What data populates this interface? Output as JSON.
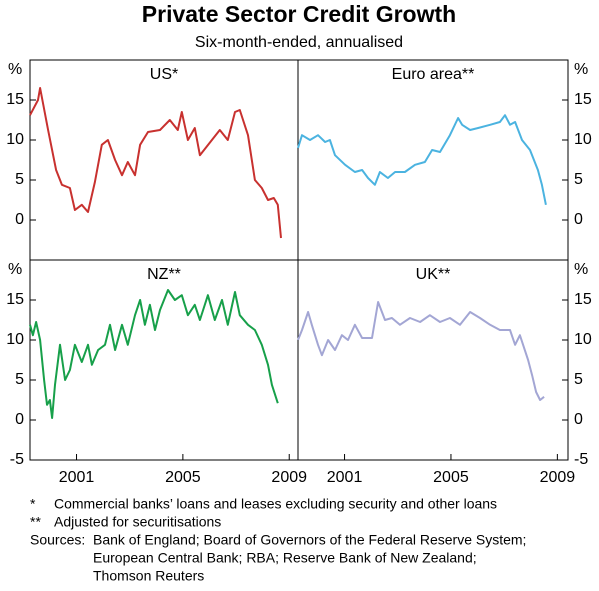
{
  "title": "Private Sector Credit Growth",
  "subtitle": "Six-month-ended, annualised",
  "chart_data": [
    {
      "type": "line",
      "title": "US*",
      "axis_side": "left",
      "y_unit": "%",
      "xlim": [
        1999.25,
        2009.33
      ],
      "ylim": [
        -5,
        20
      ],
      "yticks": [
        0,
        5,
        10,
        15
      ],
      "xticks": [],
      "x": [
        1999.25,
        1999.55,
        1999.63,
        1999.93,
        2000.23,
        2000.45,
        2000.75,
        2000.94,
        2001.2,
        2001.43,
        2001.69,
        2001.95,
        2002.18,
        2002.45,
        2002.71,
        2002.93,
        2003.2,
        2003.39,
        2003.69,
        2004.14,
        2004.51,
        2004.81,
        2004.96,
        2005.19,
        2005.45,
        2005.64,
        2006.09,
        2006.39,
        2006.69,
        2006.96,
        2007.14,
        2007.45,
        2007.71,
        2007.97,
        2008.2,
        2008.42,
        2008.57,
        2008.69
      ],
      "series": [
        {
          "color": "#c8312f",
          "values": [
            13.1,
            15,
            16.5,
            11.25,
            6.25,
            4.4,
            4,
            1.25,
            1.9,
            1,
            4.75,
            9.4,
            10,
            7.5,
            5.6,
            7.25,
            5.6,
            9.4,
            11,
            11.25,
            12.5,
            11.25,
            13.5,
            10,
            11.5,
            8.1,
            10,
            11.25,
            10,
            13.5,
            13.75,
            10.6,
            5,
            4,
            2.5,
            2.75,
            1.9,
            -2.25
          ]
        }
      ]
    },
    {
      "type": "line",
      "title": "Euro area**",
      "axis_side": "right",
      "y_unit": "%",
      "xlim": [
        1999.25,
        2009.4
      ],
      "ylim": [
        -5,
        20
      ],
      "yticks": [
        0,
        5,
        10,
        15
      ],
      "xticks": [],
      "x": [
        1999.25,
        1999.4,
        1999.7,
        2000.0,
        2000.27,
        2000.45,
        2000.64,
        2001.02,
        2001.39,
        2001.66,
        2001.88,
        2002.14,
        2002.33,
        2002.63,
        2002.9,
        2003.27,
        2003.65,
        2004.02,
        2004.29,
        2004.59,
        2004.96,
        2005.27,
        2005.42,
        2005.72,
        2006.02,
        2006.47,
        2006.84,
        2007.03,
        2007.22,
        2007.41,
        2007.67,
        2007.97,
        2008.27,
        2008.42,
        2008.57
      ],
      "series": [
        {
          "color": "#4bb3e0",
          "values": [
            9,
            10.6,
            10,
            10.6,
            9.75,
            10,
            8.1,
            6.9,
            6,
            6.25,
            5.25,
            4.4,
            6,
            5.25,
            6,
            6,
            6.9,
            7.25,
            8.75,
            8.5,
            10.6,
            12.75,
            11.9,
            11.25,
            11.5,
            11.9,
            12.25,
            13.1,
            11.9,
            12.25,
            10,
            8.75,
            6.25,
            4.4,
            1.9
          ]
        }
      ]
    },
    {
      "type": "line",
      "title": "NZ**",
      "axis_side": "left",
      "y_unit": "%",
      "xlim": [
        1999.25,
        2009.33
      ],
      "ylim": [
        -5,
        20
      ],
      "yticks": [
        -5,
        0,
        5,
        10,
        15
      ],
      "xticks": [
        2001,
        2005,
        2009
      ],
      "x": [
        1999.25,
        1999.36,
        1999.48,
        1999.63,
        1999.78,
        1999.89,
        2000.0,
        2000.08,
        2000.19,
        2000.38,
        2000.57,
        2000.75,
        2000.94,
        2001.2,
        2001.43,
        2001.58,
        2001.81,
        2002.07,
        2002.26,
        2002.45,
        2002.71,
        2002.93,
        2003.2,
        2003.39,
        2003.57,
        2003.76,
        2003.95,
        2004.14,
        2004.44,
        2004.7,
        2004.96,
        2005.19,
        2005.45,
        2005.64,
        2005.94,
        2006.2,
        2006.47,
        2006.69,
        2006.96,
        2007.14,
        2007.45,
        2007.71,
        2007.97,
        2008.2,
        2008.35,
        2008.57
      ],
      "series": [
        {
          "color": "#17a04a",
          "values": [
            11.9,
            10.6,
            12.25,
            10,
            5,
            1.9,
            2.5,
            0.25,
            4.4,
            9.4,
            5,
            6.25,
            9.4,
            7.25,
            9.4,
            6.9,
            8.75,
            9.4,
            11.9,
            8.75,
            11.9,
            9.4,
            13.1,
            15,
            11.9,
            14.4,
            11.25,
            13.75,
            16.25,
            15,
            15.6,
            13.1,
            14.4,
            12.5,
            15.6,
            12.5,
            15,
            11.9,
            16,
            13.1,
            11.9,
            11.25,
            9.4,
            6.9,
            4.4,
            2.1
          ]
        }
      ]
    },
    {
      "type": "line",
      "title": "UK**",
      "axis_side": "right",
      "y_unit": "%",
      "xlim": [
        1999.25,
        2009.4
      ],
      "ylim": [
        -5,
        20
      ],
      "yticks": [
        -5,
        0,
        5,
        10,
        15
      ],
      "xticks": [
        2001,
        2005,
        2009
      ],
      "x": [
        1999.25,
        1999.4,
        1999.63,
        1999.77,
        2000.0,
        2000.15,
        2000.38,
        2000.64,
        2000.9,
        2001.13,
        2001.39,
        2001.66,
        2002.03,
        2002.26,
        2002.52,
        2002.78,
        2003.08,
        2003.46,
        2003.84,
        2004.21,
        2004.59,
        2004.96,
        2005.34,
        2005.72,
        2006.09,
        2006.47,
        2006.84,
        2007.22,
        2007.41,
        2007.59,
        2007.9,
        2008.05,
        2008.2,
        2008.35,
        2008.5
      ],
      "series": [
        {
          "color": "#a3a6d4",
          "values": [
            10,
            11.25,
            13.5,
            11.9,
            9.4,
            8.1,
            10,
            8.75,
            10.6,
            10,
            11.9,
            10.25,
            10.25,
            14.75,
            12.5,
            12.75,
            11.9,
            12.75,
            12.25,
            13.1,
            12.25,
            12.75,
            11.9,
            13.5,
            12.75,
            11.9,
            11.25,
            11.25,
            9.4,
            10.6,
            7.5,
            5.6,
            3.5,
            2.5,
            2.9
          ]
        }
      ]
    }
  ],
  "notes": [
    {
      "marker": "*",
      "text": "Commercial banks’ loans and leases excluding security and other loans"
    },
    {
      "marker": "**",
      "text": "Adjusted for securitisations"
    }
  ],
  "sources_label": "Sources:",
  "sources": [
    "Bank of England; Board of Governors of the Federal Reserve System;",
    "European Central Bank; RBA; Reserve Bank of New Zealand;",
    "Thomson Reuters"
  ]
}
